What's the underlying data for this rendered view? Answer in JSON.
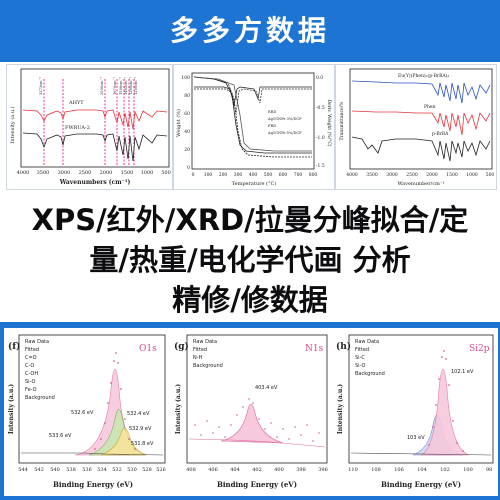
{
  "banner": {
    "title": "多多方数据",
    "bg_color": "#1e74d2"
  },
  "services": {
    "line1": "XPS/红外/XRD/拉曼分峰拟合/定",
    "line2": "量/热重/电化学代画 分析",
    "line3": "精修/修数据"
  },
  "ir_panel": {
    "xlabel": "Wavenumbers (cm⁻¹)",
    "ylabel": "Intensity (a.u.)",
    "xticks": [
      "4000",
      "3500",
      "3000",
      "2500",
      "2000",
      "1500",
      "1000",
      "500"
    ],
    "labels": [
      "AHYT",
      "FWRUA-2"
    ],
    "peaks": [
      "3373cm⁻¹",
      "2900cm⁻¹",
      "1670cm⁻¹",
      "1596cm⁻¹",
      "1463cm⁻¹",
      "1360cm⁻¹",
      "1209cm⁻¹"
    ]
  },
  "tga_panel": {
    "xlabel": "Temperature (°C)",
    "ylabel": "Weight (%)",
    "ylabel_right": "Deriv. Weight (%/°C)",
    "xticks": [
      "0",
      "100",
      "200",
      "300",
      "400",
      "500",
      "600",
      "700",
      "800"
    ],
    "yticks": [
      "100",
      "80",
      "60",
      "40",
      "20",
      "0"
    ],
    "yticks_right": [
      "0.0",
      "-0.5",
      "-1.0",
      "-1.5"
    ],
    "legend": [
      "ERD",
      "Ag1GNPs-3%/DCP",
      "FRD",
      "Ag1GNPs-5%/DCP"
    ]
  },
  "ftir_panel": {
    "xlabel": "Wavenumber/cm⁻¹",
    "ylabel": "Transmittance/%",
    "xticks": [
      "4000",
      "3500",
      "3000",
      "2500",
      "2000",
      "1500",
      "1000",
      "500"
    ],
    "labels": [
      "Eu(Y)(Phen)₂(p-BrBA)₃",
      "Phen",
      "p-BrBA"
    ]
  },
  "xps_o": {
    "letter": "(f)",
    "element": "O1s",
    "xlabel": "Binding Energy (eV)",
    "ylabel": "Intensity (a.u.)",
    "xticks": [
      "544",
      "542",
      "540",
      "538",
      "536",
      "534",
      "532",
      "530",
      "528",
      "526"
    ],
    "legend": [
      "Raw Data",
      "Fitted",
      "C=O",
      "C-O",
      "C-OH",
      "Si-O",
      "Fe-O",
      "Background"
    ],
    "annotations": [
      "532.6 eV",
      "532.4 eV",
      "533.6 eV",
      "532.9 eV",
      "531.8 eV"
    ]
  },
  "xps_n": {
    "letter": "(g)",
    "element": "N1s",
    "xlabel": "Binding Energy (eV)",
    "ylabel": "Intensity (a.u.)",
    "xticks": [
      "408",
      "406",
      "404",
      "402",
      "400",
      "398",
      "396"
    ],
    "legend": [
      "Raw Data",
      "Fitted",
      "N-H",
      "Background"
    ],
    "annotations": [
      "403.4 eV"
    ]
  },
  "xps_si": {
    "letter": "(h)",
    "element": "Si2p",
    "xlabel": "Binding Energy (eV)",
    "ylabel": "Intensity (a.u.)",
    "xticks": [
      "110",
      "108",
      "106",
      "104",
      "102",
      "100",
      "98"
    ],
    "legend": [
      "Raw Data",
      "Fitted",
      "Si-C",
      "Si-O",
      "Background"
    ],
    "annotations": [
      "102.1 eV",
      "103 eV"
    ]
  }
}
